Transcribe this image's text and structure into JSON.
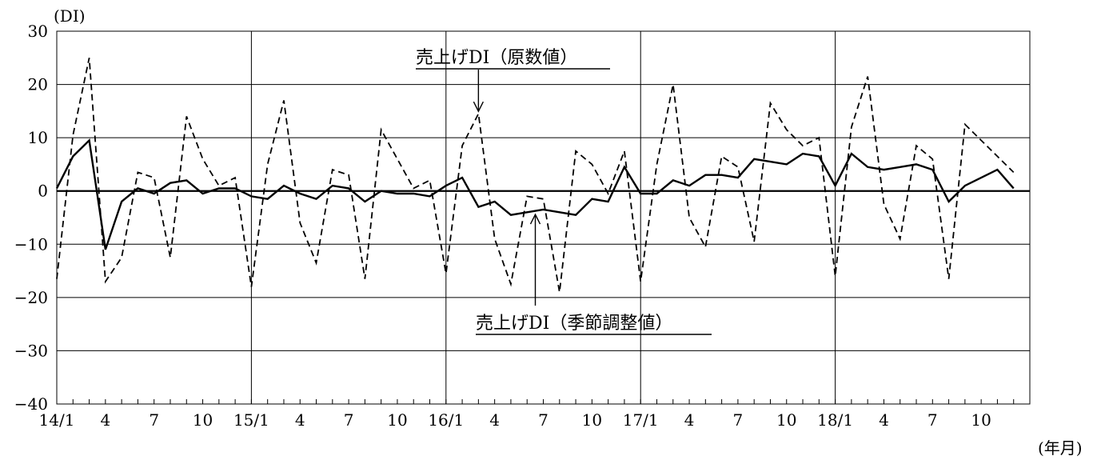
{
  "chart_data": {
    "type": "line",
    "y_unit_label": "(DI)",
    "x_unit_label": "(年月)",
    "ylim": [
      -40,
      30
    ],
    "y_ticks": [
      30,
      20,
      10,
      0,
      -10,
      -20,
      -30,
      -40
    ],
    "x_tick_labels": [
      "14/1",
      "4",
      "7",
      "10",
      "15/1",
      "4",
      "7",
      "10",
      "16/1",
      "4",
      "7",
      "10",
      "17/1",
      "4",
      "7",
      "10",
      "18/1",
      "4",
      "7",
      "10"
    ],
    "x": [
      "14/1",
      "14/2",
      "14/3",
      "14/4",
      "14/5",
      "14/6",
      "14/7",
      "14/8",
      "14/9",
      "14/10",
      "14/11",
      "14/12",
      "15/1",
      "15/2",
      "15/3",
      "15/4",
      "15/5",
      "15/6",
      "15/7",
      "15/8",
      "15/9",
      "15/10",
      "15/11",
      "15/12",
      "16/1",
      "16/2",
      "16/3",
      "16/4",
      "16/5",
      "16/6",
      "16/7",
      "16/8",
      "16/9",
      "16/10",
      "16/11",
      "16/12",
      "17/1",
      "17/2",
      "17/3",
      "17/4",
      "17/5",
      "17/6",
      "17/7",
      "17/8",
      "17/9",
      "17/10",
      "17/11",
      "17/12",
      "18/1",
      "18/2",
      "18/3",
      "18/4",
      "18/5",
      "18/6",
      "18/7",
      "18/8",
      "18/9",
      "18/10",
      "18/11",
      "18/12"
    ],
    "grid": true,
    "series": [
      {
        "name": "売上げDI（原数値）",
        "style": "dashed",
        "values": [
          -16.5,
          10.5,
          25,
          -17,
          -12.5,
          3.5,
          2.5,
          -12.5,
          14,
          6,
          1,
          2.5,
          -18,
          5,
          17,
          -6,
          -13.5,
          4,
          3,
          -16.5,
          11.5,
          6,
          0.5,
          2,
          -15.5,
          8.5,
          14.5,
          -9,
          -17.5,
          -1,
          -1.5,
          -19,
          7.5,
          5,
          -0.5,
          7.5,
          -17,
          5,
          20,
          -5,
          -10.5,
          6.5,
          4.5,
          -9.5,
          16.5,
          11.5,
          8.5,
          10,
          -16,
          12,
          21.5,
          -2.5,
          -9,
          8.5,
          6,
          -16.5,
          12.5,
          9.5,
          6.5,
          3.5
        ]
      },
      {
        "name": "売上げDI（季節調整値）",
        "style": "solid",
        "values": [
          0.5,
          6.5,
          9.5,
          -11,
          -2,
          0.5,
          -0.5,
          1.5,
          2,
          -0.5,
          0.5,
          0.5,
          -1,
          -1.5,
          1,
          -0.5,
          -1.5,
          1,
          0.5,
          -2,
          0,
          -0.5,
          -0.5,
          -1,
          1,
          2.5,
          -3,
          -2,
          -4.5,
          -4,
          -3.5,
          -4,
          -4.5,
          -1.5,
          -2,
          4.5,
          -0.5,
          -0.5,
          2,
          1,
          3,
          3,
          2.5,
          6,
          5.5,
          5,
          7,
          6.5,
          1,
          7,
          4.5,
          4,
          4.5,
          5,
          4,
          -2,
          1,
          2.5,
          4,
          0.5
        ]
      }
    ],
    "annotations": [
      {
        "text": "売上げDI（原数値）",
        "series_index": 0,
        "point_index": 26
      },
      {
        "text": "売上げDI（季節調整値）",
        "series_index": 1,
        "point_index": 30
      }
    ]
  }
}
